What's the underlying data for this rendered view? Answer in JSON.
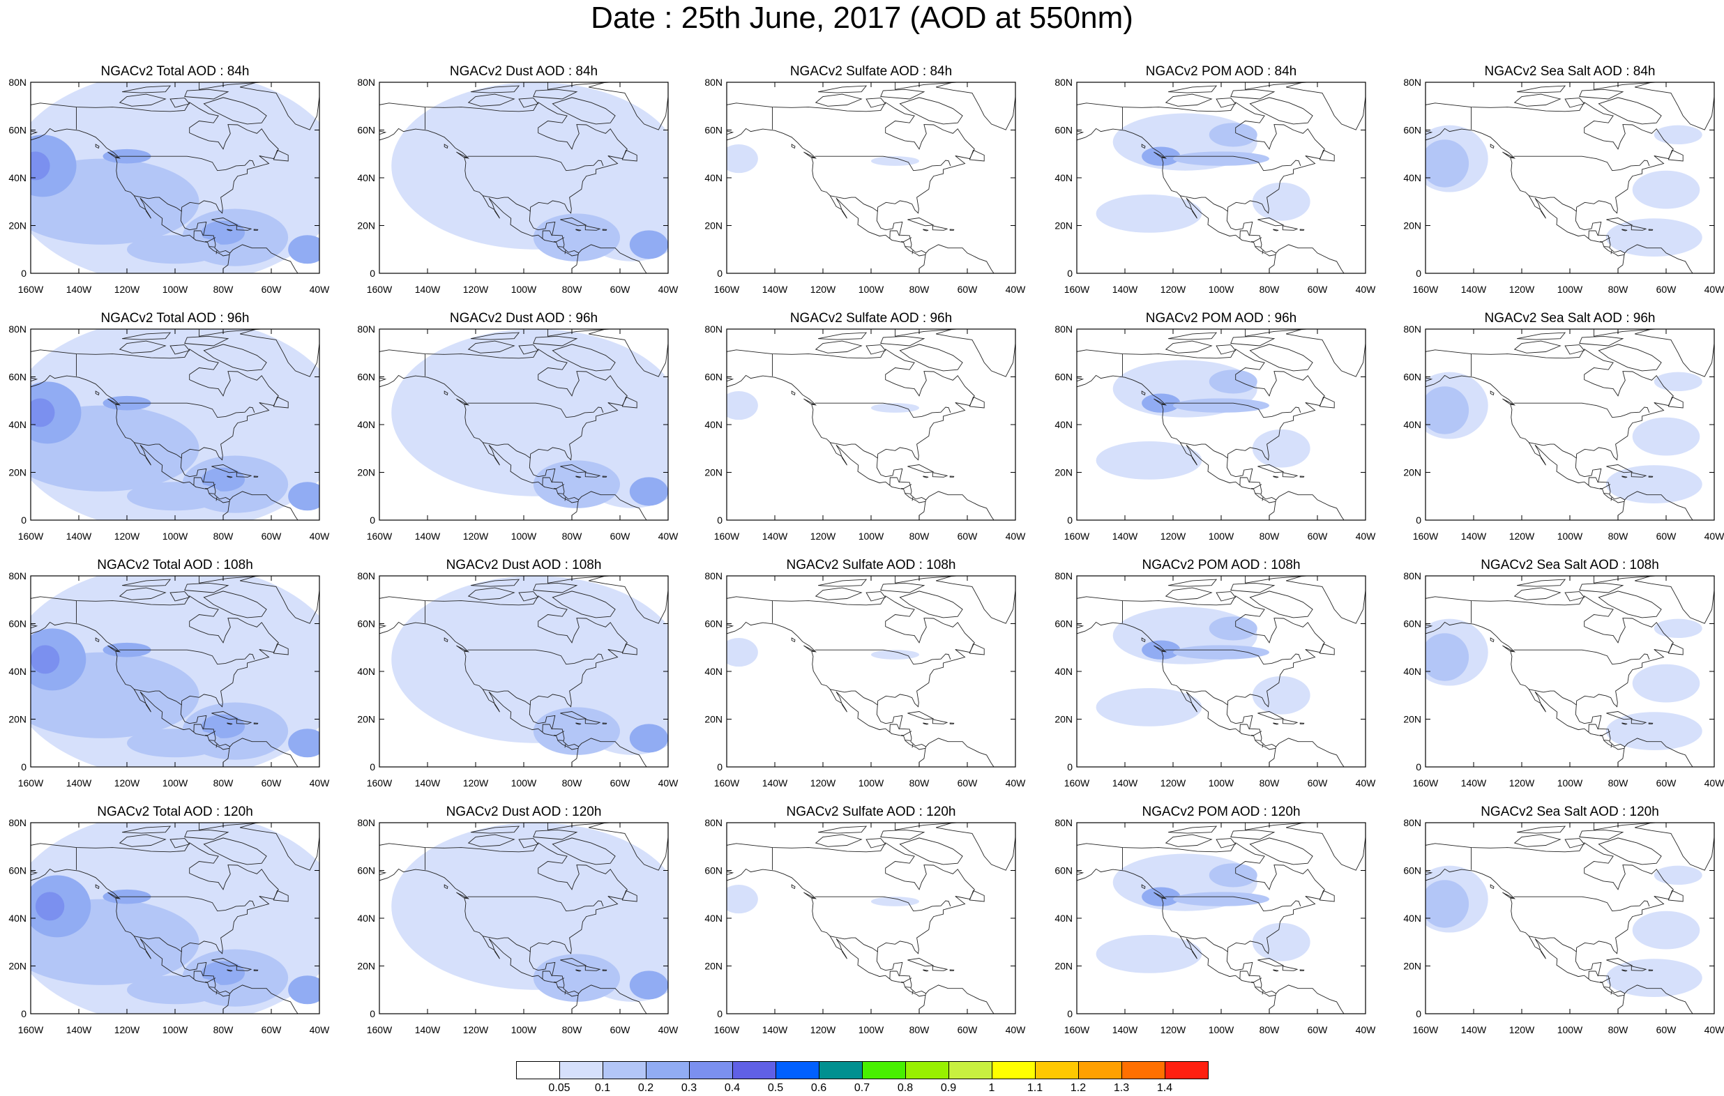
{
  "title": "Date : 25th June, 2017 (AOD at 550nm)",
  "panels": [
    {
      "title": "NGACv2 Total AOD : 84h",
      "type": "total"
    },
    {
      "title": "NGACv2 Dust AOD : 84h",
      "type": "dust"
    },
    {
      "title": "NGACv2 Sulfate AOD : 84h",
      "type": "sulfate"
    },
    {
      "title": "NGACv2 POM AOD : 84h",
      "type": "pom"
    },
    {
      "title": "NGACv2 Sea Salt AOD : 84h",
      "type": "seasalt"
    },
    {
      "title": "NGACv2 Total AOD : 96h",
      "type": "total"
    },
    {
      "title": "NGACv2 Dust AOD : 96h",
      "type": "dust"
    },
    {
      "title": "NGACv2 Sulfate AOD : 96h",
      "type": "sulfate"
    },
    {
      "title": "NGACv2 POM AOD : 96h",
      "type": "pom"
    },
    {
      "title": "NGACv2 Sea Salt AOD : 96h",
      "type": "seasalt"
    },
    {
      "title": "NGACv2 Total AOD : 108h",
      "type": "total"
    },
    {
      "title": "NGACv2 Dust AOD : 108h",
      "type": "dust"
    },
    {
      "title": "NGACv2 Sulfate AOD : 108h",
      "type": "sulfate"
    },
    {
      "title": "NGACv2 POM AOD : 108h",
      "type": "pom"
    },
    {
      "title": "NGACv2 Sea Salt AOD : 108h",
      "type": "seasalt"
    },
    {
      "title": "NGACv2 Total AOD : 120h",
      "type": "total"
    },
    {
      "title": "NGACv2 Dust AOD : 120h",
      "type": "dust"
    },
    {
      "title": "NGACv2 Sulfate AOD : 120h",
      "type": "sulfate"
    },
    {
      "title": "NGACv2 POM AOD : 120h",
      "type": "pom"
    },
    {
      "title": "NGACv2 Sea Salt  AOD : 120h",
      "type": "seasalt"
    }
  ],
  "axes": {
    "lon_ticks": [
      "160W",
      "140W",
      "120W",
      "100W",
      "80W",
      "60W",
      "40W"
    ],
    "lat_ticks": [
      "0",
      "20N",
      "40N",
      "60N",
      "80N"
    ]
  },
  "colorbar": {
    "colors": [
      "#ffffff",
      "#d6e0fb",
      "#b3c6f7",
      "#91acf3",
      "#7b90ef",
      "#6060e6",
      "#0060ff",
      "#009090",
      "#48f000",
      "#98f000",
      "#c8f040",
      "#ffff00",
      "#ffc800",
      "#ffa000",
      "#ff7000",
      "#ff2010"
    ],
    "labels": [
      "0.05",
      "0.1",
      "0.2",
      "0.3",
      "0.4",
      "0.5",
      "0.6",
      "0.7",
      "0.8",
      "0.9",
      "1",
      "1.1",
      "1.2",
      "1.3",
      "1.4"
    ]
  }
}
